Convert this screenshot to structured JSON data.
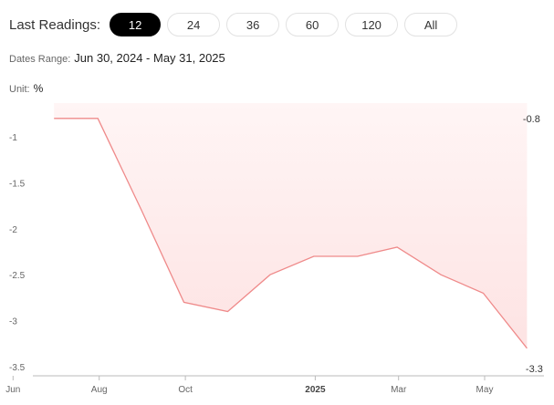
{
  "toolbar": {
    "label": "Last Readings:",
    "options": [
      "12",
      "24",
      "36",
      "60",
      "120",
      "All"
    ],
    "selected": "12"
  },
  "range": {
    "label": "Dates Range:",
    "value": "Jun 30, 2024 - May 31, 2025"
  },
  "unit": {
    "label": "Unit:",
    "value": "%"
  },
  "colors": {
    "line": "#ef8a8a",
    "fill_top": "#fde3e3",
    "fill_bottom": "#fff5f5",
    "axis": "#bbbbbb"
  },
  "chart_data": {
    "type": "area",
    "x": [
      "2024-06-30",
      "2024-07-31",
      "2024-08-31",
      "2024-09-30",
      "2024-10-31",
      "2024-11-30",
      "2024-12-31",
      "2025-01-31",
      "2025-02-28",
      "2025-03-31",
      "2025-04-30",
      "2025-05-31"
    ],
    "series": [
      {
        "values": [
          -0.8,
          -0.8,
          -1.8,
          -2.8,
          -2.9,
          -2.5,
          -2.3,
          -2.3,
          -2.2,
          -2.5,
          -2.7,
          -3.3
        ]
      }
    ],
    "ylim": [
      -3.5,
      -0.7
    ],
    "yticks": [
      -1,
      -1.5,
      -2,
      -2.5,
      -3,
      -3.5
    ],
    "xticks": [
      {
        "date": "2024-06-01",
        "label": "Jun",
        "bold": false
      },
      {
        "date": "2024-08-01",
        "label": "Aug",
        "bold": false
      },
      {
        "date": "2024-10-01",
        "label": "Oct",
        "bold": false
      },
      {
        "date": "2025-01-01",
        "label": "2025",
        "bold": true
      },
      {
        "date": "2025-03-01",
        "label": "Mar",
        "bold": false
      },
      {
        "date": "2025-05-01",
        "label": "May",
        "bold": false
      }
    ],
    "end_labels": {
      "max": "-0.8",
      "last": "-3.3"
    },
    "grid": false
  }
}
